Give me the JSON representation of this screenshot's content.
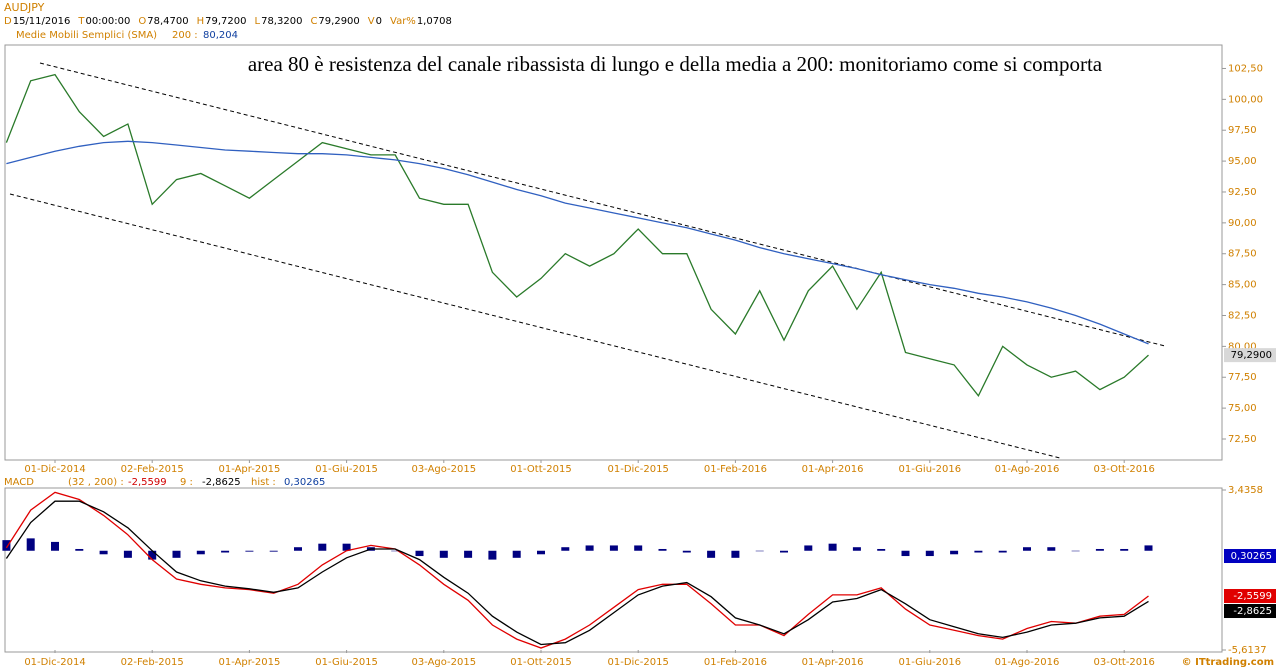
{
  "header": {
    "symbol": "AUDJPY",
    "fields": [
      {
        "key": "D",
        "value": "15/11/2016"
      },
      {
        "key": "T",
        "value": "00:00:00"
      },
      {
        "key": "O",
        "value": "78,4700"
      },
      {
        "key": "H",
        "value": "79,7200"
      },
      {
        "key": "L",
        "value": "78,3200"
      },
      {
        "key": "C",
        "value": "79,2900"
      },
      {
        "key": "V",
        "value": "0"
      },
      {
        "key": "Var%",
        "value": "1,0708"
      }
    ],
    "sma_name": "Medie Mobili Semplici (SMA)",
    "sma_period": "200 :",
    "sma_value": "80,204",
    "macd_name": "MACD",
    "macd_params": "(32 , 200) :",
    "macd_value": "-2,5599",
    "signal_key": "9 :",
    "signal_value": "-2,8625",
    "hist_key": "hist :",
    "hist_value": "0,30265",
    "copyright": "© ITtrading.com"
  },
  "chart_data": [
    {
      "type": "line",
      "annotation": "area 80 è resistenza del canale ribassista di lungo e della media a 200: monitoriamo come si comporta",
      "categories": [
        null,
        null,
        "01-Dic-2014",
        null,
        null,
        null,
        "02-Feb-2015",
        null,
        null,
        null,
        "01-Apr-2015",
        null,
        null,
        null,
        "01-Giu-2015",
        null,
        null,
        null,
        "03-Ago-2015",
        null,
        null,
        null,
        "01-Ott-2015",
        null,
        null,
        null,
        "01-Dic-2015",
        null,
        null,
        null,
        "01-Feb-2016",
        null,
        null,
        null,
        "01-Apr-2016",
        null,
        null,
        null,
        "01-Giu-2016",
        null,
        null,
        null,
        "01-Ago-2016",
        null,
        null,
        null,
        "03-Ott-2016",
        null
      ],
      "series": [
        {
          "name": "AUDJPY",
          "color": "#2a7a2a",
          "values": [
            96.5,
            101.5,
            102.0,
            99.0,
            97.0,
            98.0,
            91.5,
            93.5,
            94.0,
            93.0,
            92.0,
            93.5,
            95.0,
            96.5,
            96.0,
            95.5,
            95.5,
            92.0,
            91.5,
            91.5,
            86.0,
            84.0,
            85.5,
            87.5,
            86.5,
            87.5,
            89.5,
            87.5,
            87.5,
            83.0,
            81.0,
            84.5,
            80.5,
            84.5,
            86.5,
            83.0,
            86.0,
            79.5,
            79.0,
            78.5,
            76.0,
            80.0,
            78.5,
            77.5,
            78.0,
            76.5,
            77.5,
            79.29
          ]
        },
        {
          "name": "Medie Mobili Semplici (SMA)",
          "color": "#3060c0",
          "values": [
            94.8,
            95.3,
            95.8,
            96.2,
            96.5,
            96.6,
            96.5,
            96.3,
            96.1,
            95.9,
            95.8,
            95.7,
            95.6,
            95.6,
            95.5,
            95.3,
            95.1,
            94.8,
            94.4,
            93.9,
            93.3,
            92.7,
            92.2,
            91.6,
            91.2,
            90.8,
            90.4,
            90.0,
            89.6,
            89.1,
            88.6,
            88.0,
            87.5,
            87.1,
            86.7,
            86.3,
            85.8,
            85.4,
            85.0,
            84.7,
            84.3,
            84.0,
            83.6,
            83.1,
            82.5,
            81.8,
            81.0,
            80.2
          ]
        }
      ],
      "last_label": "79,2900",
      "ylim": [
        70.8,
        104.4
      ],
      "yticks": [
        {
          "value": 72.5,
          "label": "72,50"
        },
        {
          "value": 75,
          "label": "75,00"
        },
        {
          "value": 77.5,
          "label": "77,50"
        },
        {
          "value": 80,
          "label": "80,00"
        },
        {
          "value": 82.5,
          "label": "82,50"
        },
        {
          "value": 85,
          "label": "85,00"
        },
        {
          "value": 87.5,
          "label": "87,50"
        },
        {
          "value": 90,
          "label": "90,00"
        },
        {
          "value": 92.5,
          "label": "92,50"
        },
        {
          "value": 95,
          "label": "95,00"
        },
        {
          "value": 97.5,
          "label": "97,50"
        },
        {
          "value": 100,
          "label": "100,00"
        },
        {
          "value": 102.5,
          "label": "102,50"
        }
      ]
    },
    {
      "type": "macd",
      "categories": [
        null,
        null,
        "01-Dic-2014",
        null,
        null,
        null,
        "02-Feb-2015",
        null,
        null,
        null,
        "01-Apr-2015",
        null,
        null,
        null,
        "01-Giu-2015",
        null,
        null,
        null,
        "03-Ago-2015",
        null,
        null,
        null,
        "01-Ott-2015",
        null,
        null,
        null,
        "01-Dic-2015",
        null,
        null,
        null,
        "01-Feb-2016",
        null,
        null,
        null,
        "01-Apr-2016",
        null,
        null,
        null,
        "01-Giu-2016",
        null,
        null,
        null,
        "01-Ago-2016",
        null,
        null,
        null,
        "03-Ott-2016",
        null
      ],
      "series": [
        {
          "name": "MACD",
          "color": "#e00000",
          "value_label": "-2,5599",
          "values": [
            0.16,
            2.3,
            3.3,
            2.9,
            2.0,
            0.9,
            -0.5,
            -1.6,
            -1.9,
            -2.1,
            -2.2,
            -2.4,
            -1.9,
            -0.8,
            0.0,
            0.3,
            0.1,
            -0.8,
            -1.9,
            -2.8,
            -4.2,
            -5.0,
            -5.5,
            -5.0,
            -4.2,
            -3.2,
            -2.2,
            -1.9,
            -1.9,
            -3.0,
            -4.2,
            -4.2,
            -4.8,
            -3.6,
            -2.5,
            -2.5,
            -2.1,
            -3.3,
            -4.2,
            -4.5,
            -4.8,
            -5.0,
            -4.4,
            -4.0,
            -4.1,
            -3.7,
            -3.6,
            -2.5599
          ]
        },
        {
          "name": "9",
          "color": "#000000",
          "value_label": "-2,8625",
          "values": [
            -0.44,
            1.6,
            2.8,
            2.8,
            2.2,
            1.3,
            0.0,
            -1.2,
            -1.7,
            -2.0,
            -2.15,
            -2.35,
            -2.1,
            -1.2,
            -0.4,
            0.1,
            0.1,
            -0.5,
            -1.5,
            -2.4,
            -3.7,
            -4.6,
            -5.3,
            -5.2,
            -4.5,
            -3.5,
            -2.5,
            -2.0,
            -1.8,
            -2.6,
            -3.8,
            -4.2,
            -4.7,
            -3.9,
            -2.9,
            -2.7,
            -2.2,
            -3.0,
            -3.9,
            -4.3,
            -4.7,
            -4.9,
            -4.6,
            -4.2,
            -4.1,
            -3.8,
            -3.7,
            -2.8625
          ]
        },
        {
          "name": "hist",
          "color": "#000080",
          "kind": "hist",
          "value_label": "0,30265",
          "values": [
            0.6,
            0.7,
            0.5,
            0.1,
            -0.2,
            -0.4,
            -0.5,
            -0.4,
            -0.2,
            -0.1,
            -0.05,
            -0.05,
            0.2,
            0.4,
            0.4,
            0.2,
            0.0,
            -0.3,
            -0.4,
            -0.4,
            -0.5,
            -0.4,
            -0.2,
            0.2,
            0.3,
            0.3,
            0.3,
            0.1,
            -0.1,
            -0.4,
            -0.4,
            0.0,
            -0.1,
            0.3,
            0.4,
            0.2,
            0.1,
            -0.3,
            -0.3,
            -0.2,
            -0.1,
            -0.1,
            0.2,
            0.2,
            0.0,
            0.1,
            0.1,
            0.30265
          ]
        }
      ],
      "ylim": [
        -5.6137,
        3.4358
      ],
      "yticks": [
        {
          "value": 3.4358,
          "label": "3,4358"
        },
        {
          "value": -5.6137,
          "label": "-5,6137"
        }
      ]
    }
  ]
}
